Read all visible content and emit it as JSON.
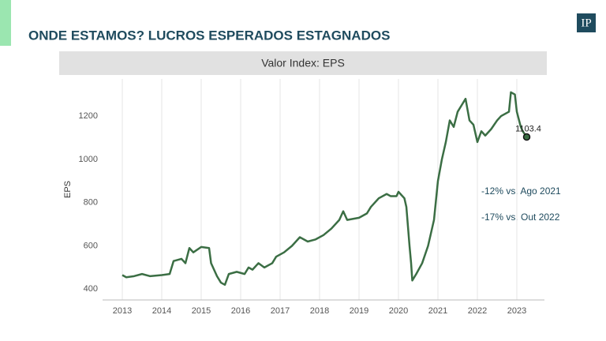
{
  "header": {
    "title": "ONDE ESTAMOS? LUCROS ESPERADOS ESTAGNADOS",
    "logo": "IP"
  },
  "chart_data": {
    "type": "line",
    "title": "Valor Index: EPS",
    "y_label": "EPS",
    "annotations": [
      "-12% vs. Ago 2021",
      "-17% vs. Out 2022"
    ],
    "series": [
      {
        "name": "EPS",
        "color": "#3b6e44",
        "x": [
          2013.0,
          2013.1,
          2013.3,
          2013.5,
          2013.7,
          2014.0,
          2014.2,
          2014.3,
          2014.5,
          2014.6,
          2014.7,
          2014.8,
          2015.0,
          2015.2,
          2015.25,
          2015.4,
          2015.5,
          2015.6,
          2015.7,
          2015.9,
          2016.1,
          2016.2,
          2016.3,
          2016.45,
          2016.6,
          2016.8,
          2016.9,
          2017.1,
          2017.3,
          2017.5,
          2017.7,
          2017.9,
          2018.1,
          2018.3,
          2018.5,
          2018.6,
          2018.7,
          2019.0,
          2019.2,
          2019.3,
          2019.5,
          2019.7,
          2019.8,
          2019.95,
          2020.0,
          2020.15,
          2020.2,
          2020.28,
          2020.32,
          2020.35,
          2020.45,
          2020.6,
          2020.75,
          2020.9,
          2021.0,
          2021.1,
          2021.2,
          2021.3,
          2021.4,
          2021.5,
          2021.6,
          2021.7,
          2021.8,
          2021.9,
          2022.0,
          2022.1,
          2022.2,
          2022.35,
          2022.5,
          2022.6,
          2022.8,
          2022.85,
          2022.95,
          2023.0,
          2023.1,
          2023.15,
          2023.25
        ],
        "values": [
          465,
          455,
          460,
          470,
          460,
          465,
          470,
          530,
          540,
          520,
          590,
          570,
          595,
          590,
          520,
          460,
          430,
          420,
          470,
          480,
          470,
          500,
          490,
          520,
          500,
          520,
          550,
          570,
          600,
          640,
          620,
          630,
          650,
          680,
          720,
          760,
          720,
          730,
          750,
          780,
          820,
          840,
          830,
          830,
          850,
          820,
          780,
          600,
          520,
          440,
          470,
          520,
          600,
          720,
          900,
          1000,
          1080,
          1180,
          1150,
          1220,
          1250,
          1280,
          1180,
          1160,
          1080,
          1130,
          1110,
          1140,
          1180,
          1200,
          1220,
          1310,
          1300,
          1220,
          1150,
          1130,
          1103.4
        ]
      }
    ],
    "xlim": [
      2012.5,
      2023.7
    ],
    "xticks": [
      2013,
      2014,
      2015,
      2016,
      2017,
      2018,
      2019,
      2020,
      2021,
      2022,
      2023
    ],
    "ylim": [
      350,
      1390
    ],
    "yticks": [
      400,
      600,
      800,
      1000,
      1200
    ],
    "grid": "x",
    "end_marker": true
  }
}
